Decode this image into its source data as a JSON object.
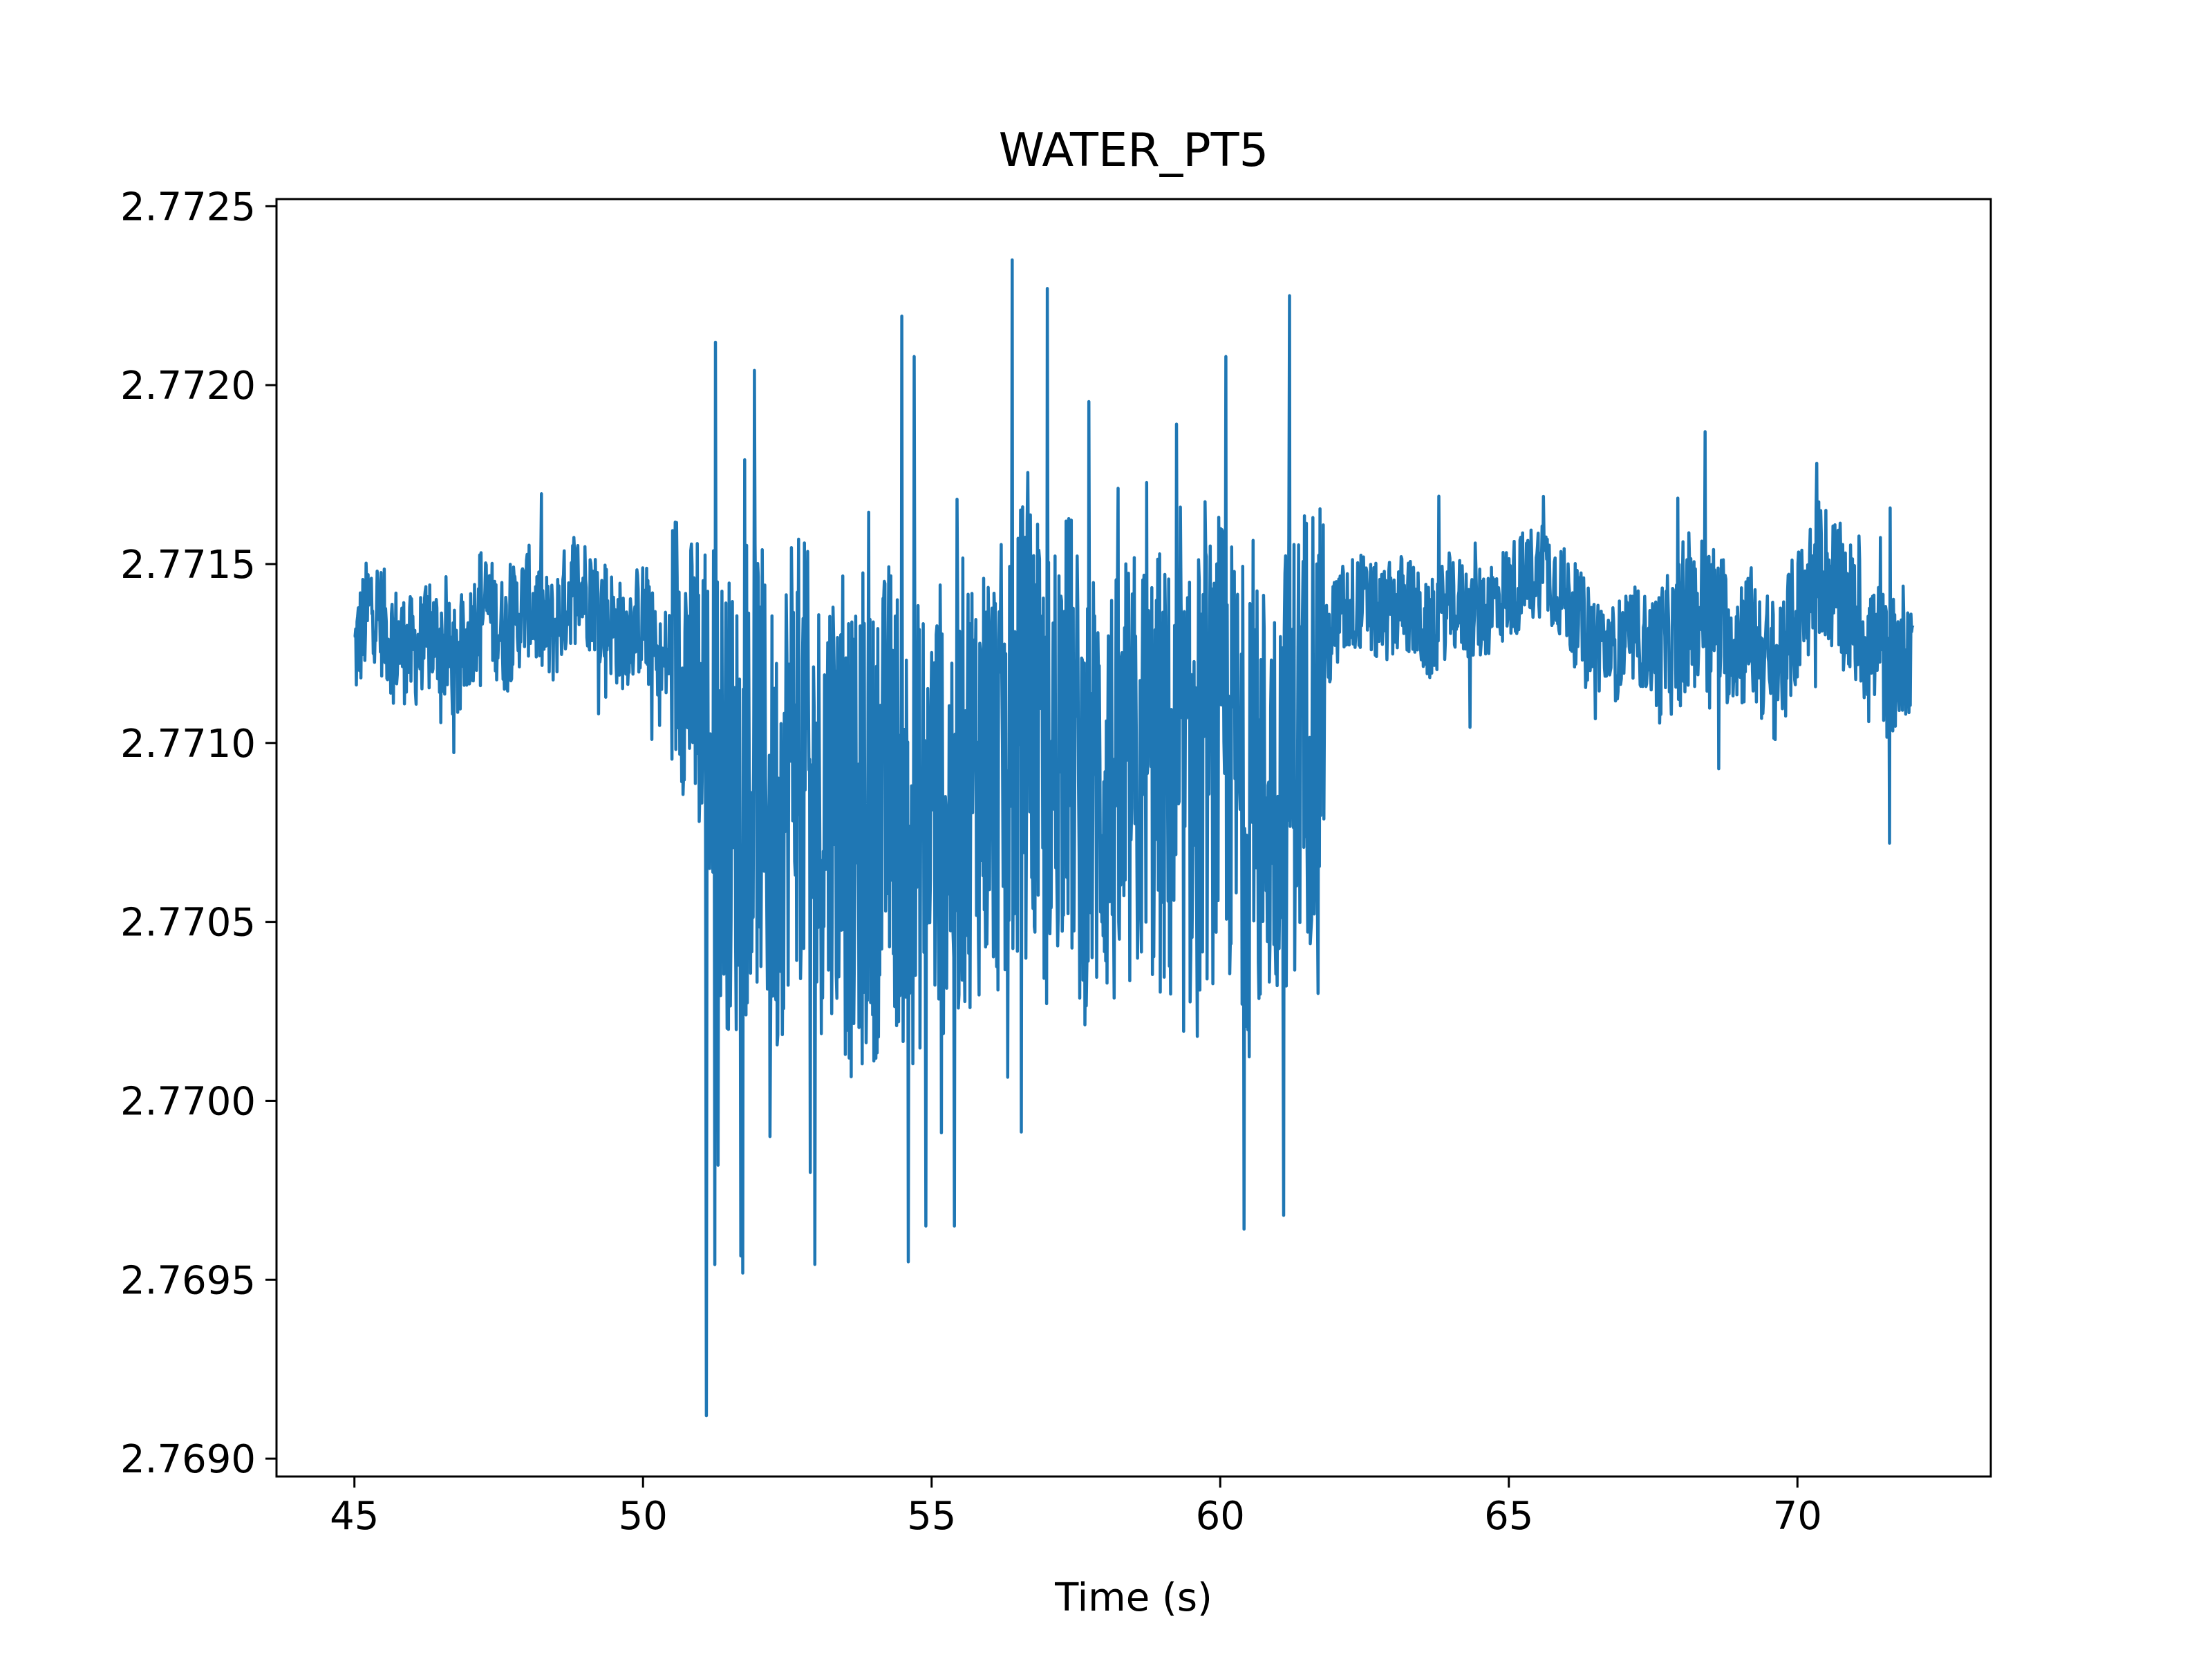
{
  "chart_data": {
    "type": "line",
    "title": "WATER_PT5",
    "xlabel": "Time (s)",
    "ylabel": "",
    "xlim": [
      43.65,
      73.35
    ],
    "ylim": [
      2.76895,
      2.77252
    ],
    "x_ticks": [
      45,
      50,
      55,
      60,
      65,
      70
    ],
    "x_tick_labels": [
      "45",
      "50",
      "55",
      "60",
      "65",
      "70"
    ],
    "y_ticks": [
      2.769,
      2.7695,
      2.77,
      2.7705,
      2.771,
      2.7715,
      2.772,
      2.7725
    ],
    "y_tick_labels": [
      "2.7690",
      "2.7695",
      "2.7700",
      "2.7705",
      "2.7710",
      "2.7715",
      "2.7720",
      "2.7725"
    ],
    "grid": false,
    "legend": "none",
    "line_color": "#1f77b4",
    "series": [
      {
        "x": [
          45.0,
          45.3,
          45.6,
          46.0,
          46.4,
          46.8,
          47.2,
          47.6,
          48.0,
          48.4,
          48.8,
          49.2,
          49.6,
          50.0,
          50.3,
          50.6,
          51.0,
          51.3,
          51.6,
          52.0,
          52.3,
          52.6,
          53.0,
          53.3,
          53.6,
          54.0,
          54.3,
          54.6,
          55.0,
          55.3,
          55.6,
          56.0,
          56.3,
          56.6,
          57.0,
          57.3,
          57.6,
          58.0,
          58.3,
          58.6,
          59.0,
          59.3,
          59.6,
          60.0,
          60.3,
          60.6,
          61.0,
          61.3,
          61.6,
          62.0,
          62.4,
          62.8,
          63.2,
          63.6,
          64.0,
          64.4,
          64.8,
          65.2,
          65.6,
          66.0,
          66.4,
          66.8,
          67.2,
          67.6,
          68.0,
          68.4,
          68.8,
          69.2,
          69.6,
          70.0,
          70.4,
          70.8,
          71.2,
          71.6,
          72.0
        ],
        "y": [
          2.77125,
          2.7714,
          2.7713,
          2.77125,
          2.7713,
          2.7712,
          2.7714,
          2.7713,
          2.7714,
          2.7713,
          2.77145,
          2.7714,
          2.7713,
          2.77135,
          2.7712,
          2.7713,
          2.7711,
          2.7709,
          2.7708,
          2.77095,
          2.7707,
          2.77105,
          2.7708,
          2.7709,
          2.7707,
          2.77075,
          2.7709,
          2.7707,
          2.77085,
          2.7708,
          2.7709,
          2.77095,
          2.7709,
          2.77105,
          2.7709,
          2.7711,
          2.77085,
          2.7709,
          2.7708,
          2.77095,
          2.7709,
          2.7708,
          2.7709,
          2.771,
          2.7709,
          2.7708,
          2.7709,
          2.771,
          2.7711,
          2.77135,
          2.7714,
          2.77135,
          2.7714,
          2.7713,
          2.7714,
          2.77135,
          2.7714,
          2.77145,
          2.7715,
          2.7714,
          2.7713,
          2.77125,
          2.7713,
          2.77125,
          2.7713,
          2.7714,
          2.7713,
          2.7713,
          2.7712,
          2.77135,
          2.7715,
          2.7714,
          2.7713,
          2.7712,
          2.7713
        ]
      }
    ],
    "spikes": [
      {
        "x": 51.1,
        "y": 2.76912
      },
      {
        "x": 51.25,
        "y": 2.77212
      },
      {
        "x": 51.3,
        "y": 2.76982
      },
      {
        "x": 52.2,
        "y": 2.7699
      },
      {
        "x": 52.9,
        "y": 2.7698
      },
      {
        "x": 54.6,
        "y": 2.76955
      },
      {
        "x": 54.7,
        "y": 2.77208
      },
      {
        "x": 54.9,
        "y": 2.76965
      },
      {
        "x": 55.4,
        "y": 2.76965
      },
      {
        "x": 56.4,
        "y": 2.77235
      },
      {
        "x": 57.0,
        "y": 2.77227
      },
      {
        "x": 59.6,
        "y": 2.77018
      },
      {
        "x": 60.1,
        "y": 2.77208
      },
      {
        "x": 61.1,
        "y": 2.76968
      },
      {
        "x": 61.2,
        "y": 2.77225
      },
      {
        "x": 61.7,
        "y": 2.7703
      },
      {
        "x": 68.4,
        "y": 2.77187
      },
      {
        "x": 71.6,
        "y": 2.77072
      }
    ]
  }
}
